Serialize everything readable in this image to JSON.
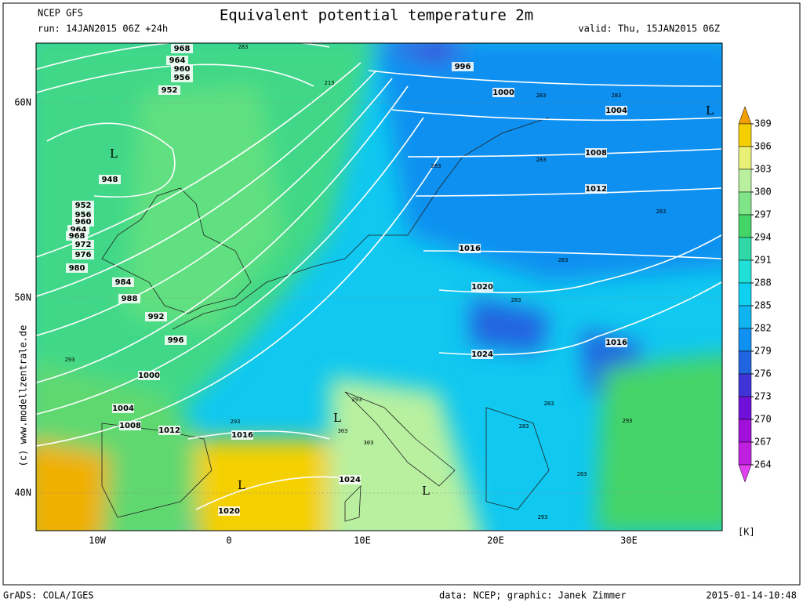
{
  "header": {
    "model": "NCEP GFS",
    "run": "run: 14JAN2015 06Z +24h",
    "title": "Equivalent potential temperature 2m",
    "valid": "valid: Thu, 15JAN2015 06Z"
  },
  "map": {
    "lat_labels": [
      "60N",
      "50N",
      "40N"
    ],
    "lon_labels": [
      "10W",
      "0",
      "10E",
      "20E",
      "30E"
    ],
    "isobar_labels": [
      "968",
      "964",
      "960",
      "956",
      "952",
      "948",
      "952",
      "956",
      "960",
      "964",
      "968",
      "972",
      "976",
      "980",
      "984",
      "988",
      "992",
      "996",
      "1000",
      "1004",
      "1008",
      "1012",
      "1016",
      "1020",
      "1024",
      "996",
      "1000",
      "1004",
      "1008",
      "1012",
      "1016",
      "1020",
      "1024",
      "1016"
    ],
    "lows": [
      "L",
      "L",
      "L",
      "L",
      "L"
    ],
    "theta_labels": [
      "283",
      "213",
      "283",
      "283",
      "283",
      "283",
      "283",
      "283",
      "283",
      "293",
      "293",
      "303",
      "303",
      "293",
      "283",
      "293",
      "283",
      "293",
      "283"
    ]
  },
  "colorbar": {
    "unit": "[K]",
    "ticks": [
      309,
      306,
      303,
      300,
      297,
      294,
      291,
      288,
      285,
      282,
      279,
      276,
      273,
      270,
      267,
      264
    ],
    "colors": [
      "#f0a000",
      "#f5d000",
      "#e8f078",
      "#b8f0a0",
      "#80e488",
      "#44d468",
      "#30d8a8",
      "#20e0d8",
      "#10d0f0",
      "#10b4f0",
      "#1090f0",
      "#2064e0",
      "#4034d8",
      "#7010d8",
      "#a010d8",
      "#c020e0",
      "#e040f0"
    ]
  },
  "watermark": "(c)  www.modellzentrale.de",
  "footer": {
    "left": "GrADS: COLA/IGES",
    "credit": "data: NCEP; graphic: Janek Zimmer",
    "date": "2015-01-14-10:48"
  }
}
